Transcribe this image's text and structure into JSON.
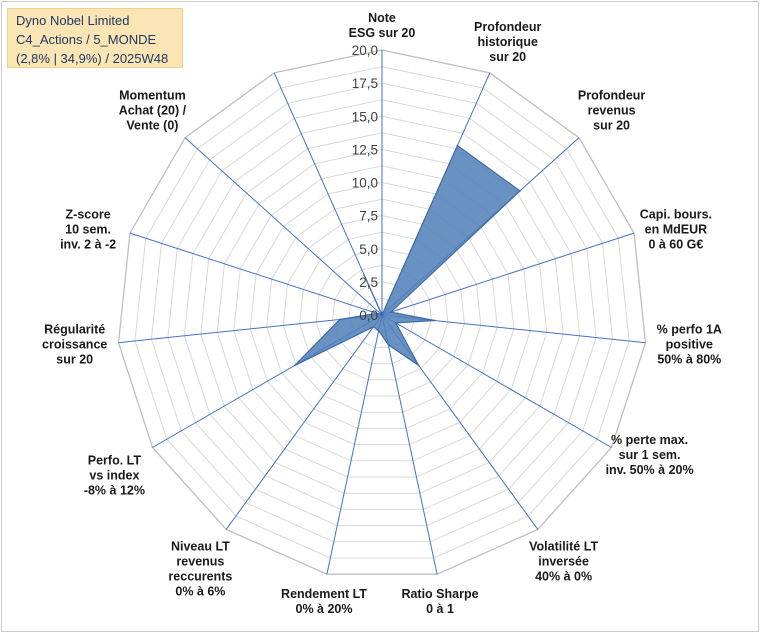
{
  "info": {
    "line1": "Dyno Nobel Limited",
    "line2": "C4_Actions / 5_MONDE",
    "line3": "(2,8% | 34,9%) / 2025W48"
  },
  "colors": {
    "fill": "#4f7fb8",
    "stroke": "#3d6ca8",
    "spoke": "#4472c4",
    "grid": "#d9d9d9"
  },
  "chart_data": {
    "type": "radar",
    "title": "",
    "rmax": 20,
    "ticks": [
      "0,0",
      "2,5",
      "5,0",
      "7,5",
      "10,0",
      "12,5",
      "15,0",
      "17,5",
      "20,0"
    ],
    "tick_values": [
      0,
      2.5,
      5,
      7.5,
      10,
      12.5,
      15,
      17.5,
      20
    ],
    "axes": [
      {
        "lines": [
          "Note",
          "ESG sur 20"
        ],
        "value": 0
      },
      {
        "lines": [
          "Profondeur",
          "historique",
          "sur 20"
        ],
        "value": 14
      },
      {
        "lines": [
          "Profondeur",
          "revenus",
          "sur 20"
        ],
        "value": 14
      },
      {
        "lines": [
          "Capi. bours.",
          "en MdEUR",
          "0 à 60 G€"
        ],
        "value": 0.7
      },
      {
        "lines": [
          "% perfo 1A",
          "positive",
          "50% à 80%"
        ],
        "value": 4
      },
      {
        "lines": [
          "% perte max.",
          "sur 1 sem.",
          "inv. 50% à 20%"
        ],
        "value": 1.2
      },
      {
        "lines": [
          "Volatilité LT",
          "inversée",
          "40% à 0%"
        ],
        "value": 4.7
      },
      {
        "lines": [
          "Ratio Sharpe",
          "0 à 1"
        ],
        "value": 2.3
      },
      {
        "lines": [
          "Rendement LT",
          "0% à 20%"
        ],
        "value": 1.2
      },
      {
        "lines": [
          "Niveau LT",
          "revenus",
          "reccurents",
          "0% à 6%"
        ],
        "value": 1.1
      },
      {
        "lines": [
          "Perfo. LT",
          "vs index",
          "-8% à 12%"
        ],
        "value": 7.6
      },
      {
        "lines": [
          "Régularité",
          "croissance",
          "sur 20"
        ],
        "value": 3.2
      },
      {
        "lines": [
          "Z-score",
          "10 sem.",
          "inv. 2 à -2"
        ],
        "value": 0.4
      },
      {
        "lines": [
          "Momentum",
          "Achat (20) /",
          "Vente (0)"
        ],
        "value": 0
      },
      {
        "lines": [],
        "value": 3.3
      }
    ]
  }
}
